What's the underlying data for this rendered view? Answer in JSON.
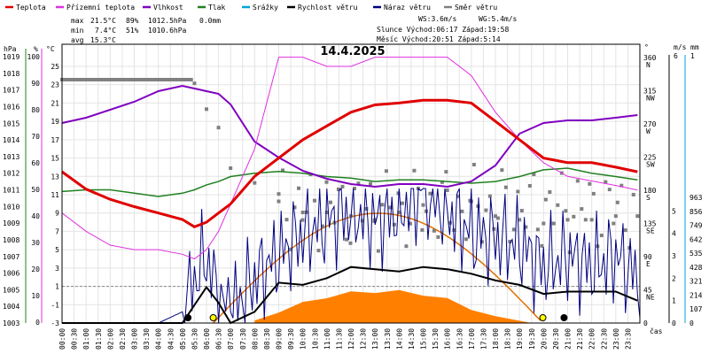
{
  "chart_data": {
    "type": "line",
    "title": "14.4.2025",
    "xlabel": "čas",
    "x_tick_labels": [
      "00:00",
      "00:30",
      "01:00",
      "01:30",
      "02:00",
      "02:30",
      "03:00",
      "03:30",
      "04:00",
      "04:30",
      "05:00",
      "05:30",
      "06:00",
      "06:30",
      "07:00",
      "07:30",
      "08:00",
      "08:30",
      "09:00",
      "09:30",
      "10:00",
      "10:30",
      "11:00",
      "11:30",
      "12:00",
      "12:30",
      "13:00",
      "13:30",
      "14:00",
      "14:30",
      "15:00",
      "15:30",
      "16:00",
      "16:30",
      "17:00",
      "17:30",
      "18:00",
      "18:30",
      "19:00",
      "19:30",
      "20:00",
      "20:30",
      "21:00",
      "21:30",
      "22:00",
      "22:30",
      "23:00",
      "23:30"
    ],
    "x_hours": [
      0,
      1,
      2,
      3,
      4,
      5,
      5.5,
      6,
      6.5,
      7,
      8,
      9,
      10,
      11,
      12,
      13,
      14,
      15,
      16,
      17,
      18,
      19,
      20,
      21,
      22,
      23,
      23.9
    ],
    "legend": [
      {
        "label": "Teplota",
        "color": "#e00000"
      },
      {
        "label": "Přízemní teplota",
        "color": "#e030e0"
      },
      {
        "label": "Vlhkost",
        "color": "#8000c0"
      },
      {
        "label": "Tlak",
        "color": "#208020"
      },
      {
        "label": "Srážky",
        "color": "#00a0e0"
      },
      {
        "label": "Rychlost větru",
        "color": "#000000"
      },
      {
        "label": "Náraz větru",
        "color": "#000080"
      },
      {
        "label": "Směr větru",
        "color": "#808080"
      }
    ],
    "stats": {
      "max": {
        "label": "max",
        "temp": "21.5°C",
        "hum": "89%",
        "press": "1012.5hPa",
        "rain": "0.0mm"
      },
      "min": {
        "label": "min",
        "temp": "7.4°C",
        "hum": "51%",
        "press": "1010.6hPa"
      },
      "avg": {
        "label": "avg",
        "temp": "15.3°C"
      },
      "ws": "WS:3.6m/s",
      "wg": "WG:5.4m/s",
      "sun": "Slunce Východ:06:17  Západ:19:58",
      "moon": "Měsíc  Východ:20:51  Západ:5:14"
    },
    "axes": {
      "pressure": {
        "unit": "hPa",
        "ticks": [
          "1019",
          "1018",
          "1017",
          "1016",
          "1015",
          "1014",
          "1013",
          "1012",
          "1011",
          "1010",
          "1009",
          "1008",
          "1007",
          "1006",
          "1005",
          "1004",
          "1003"
        ]
      },
      "humidity": {
        "unit": "%",
        "ticks": [
          "100",
          "90",
          "80",
          "70",
          "60",
          "50",
          "40",
          "30",
          "20",
          "10",
          "0"
        ]
      },
      "temperature": {
        "unit": "°C",
        "ticks": [
          "25",
          "23",
          "21",
          "19",
          "17",
          "15",
          "13",
          "11",
          "9",
          "7",
          "5",
          "3",
          "1",
          "-1",
          "-3"
        ]
      },
      "wind_dir": {
        "unit": "°",
        "ticks": [
          {
            "v": "360",
            "d": "N"
          },
          {
            "v": "315",
            "d": "NW"
          },
          {
            "v": "270",
            "d": "W"
          },
          {
            "v": "225",
            "d": "SW"
          },
          {
            "v": "180",
            "d": "S"
          },
          {
            "v": "135",
            "d": "SE"
          },
          {
            "v": "90",
            "d": "E"
          },
          {
            "v": "45",
            "d": "NE"
          },
          {
            "v": "0",
            "d": ""
          }
        ]
      },
      "wind_speed": {
        "unit": "m/s",
        "ticks": [
          "6",
          "5",
          "4",
          "3",
          "2",
          "1",
          "0"
        ]
      },
      "rain": {
        "unit": "mm",
        "ticks": [
          "1"
        ]
      },
      "radiation": {
        "ticks": [
          "963",
          "856",
          "749",
          "642",
          "535",
          "428",
          "321",
          "214",
          "107",
          "0"
        ]
      }
    },
    "series": [
      {
        "name": "Teplota",
        "unit": "°C",
        "values": [
          13.5,
          11.6,
          10.5,
          9.7,
          9.0,
          8.3,
          7.5,
          8.0,
          9.0,
          10.0,
          13.0,
          15.0,
          17.0,
          18.5,
          20.0,
          20.8,
          21.0,
          21.3,
          21.3,
          21.0,
          19.0,
          17.0,
          15.0,
          14.5,
          14.5,
          14.0,
          13.5
        ]
      },
      {
        "name": "Přízemní teplota",
        "unit": "°C",
        "values": [
          9.0,
          7.0,
          5.5,
          5.0,
          5.0,
          4.5,
          4.0,
          5.0,
          7.0,
          10.0,
          16.0,
          26.0,
          26.0,
          25.0,
          25.0,
          26.0,
          26.0,
          26.0,
          26.0,
          24.0,
          20.0,
          17.0,
          14.5,
          13.0,
          12.5,
          12.0,
          11.5
        ]
      },
      {
        "name": "Vlhkost",
        "unit": "%",
        "values": [
          75,
          77,
          80,
          83,
          87,
          89,
          88,
          87,
          86,
          82,
          68,
          62,
          57,
          54,
          52,
          51,
          52,
          52,
          51,
          53,
          59,
          71,
          75,
          76,
          76,
          77,
          78
        ]
      },
      {
        "name": "Tlak",
        "unit": "hPa",
        "values": [
          1010.9,
          1011.0,
          1011.0,
          1010.8,
          1010.6,
          1010.8,
          1011.0,
          1011.3,
          1011.5,
          1011.8,
          1012.0,
          1012.1,
          1012.0,
          1011.8,
          1011.7,
          1011.5,
          1011.6,
          1011.6,
          1011.5,
          1011.4,
          1011.5,
          1011.8,
          1012.2,
          1012.3,
          1012.0,
          1011.8,
          1011.6
        ]
      },
      {
        "name": "Rychlost větru",
        "unit": "m/s",
        "values": [
          0,
          0,
          0,
          0,
          0,
          0,
          0.8,
          1.6,
          0.9,
          0,
          0.5,
          1.8,
          1.7,
          2.0,
          2.5,
          2.4,
          2.3,
          2.5,
          2.4,
          2.2,
          1.9,
          1.7,
          1.3,
          1.4,
          1.4,
          1.4,
          1.0
        ]
      },
      {
        "name": "Náraz větru",
        "unit": "m/s",
        "values": [
          0,
          0,
          0,
          0,
          0,
          0.5,
          2.0,
          3.0,
          1.0,
          0.5,
          2.0,
          3.0,
          4.0,
          4.5,
          5.0,
          4.5,
          5.0,
          6.0,
          5.0,
          4.0,
          3.8,
          3.5,
          2.5,
          3.0,
          2.5,
          3.0,
          2.0
        ]
      },
      {
        "name": "Směr větru",
        "unit": "°",
        "values": [
          330,
          330,
          330,
          330,
          330,
          330,
          325,
          290,
          265,
          210,
          190,
          165,
          150,
          150,
          145,
          140,
          150,
          160,
          180,
          165,
          145,
          140,
          135,
          140,
          140,
          145,
          145
        ]
      }
    ],
    "radiation": {
      "color": "#ff8000",
      "hours": [
        8,
        9,
        10,
        11,
        12,
        13,
        14,
        15,
        16,
        17,
        18,
        19.5
      ],
      "values": [
        20,
        90,
        150,
        200,
        230,
        240,
        240,
        220,
        180,
        110,
        40,
        0
      ]
    },
    "sun_curve": {
      "color": "#e07000",
      "rise": 6.28,
      "set": 19.97,
      "peak": 14.1
    }
  }
}
